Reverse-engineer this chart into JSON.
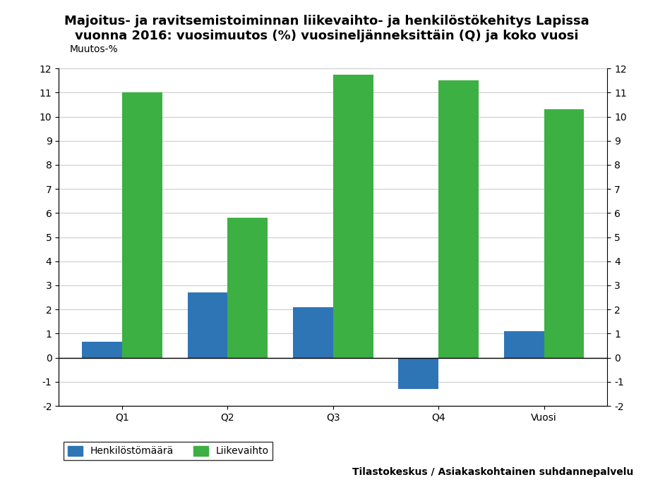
{
  "title_line1": "Majoitus- ja ravitsemistoiminnan liikevaihto- ja henkilöstökehitys Lapissa",
  "title_line2": "vuonna 2016: vuosimuutos (%) vuosineljänneksittäin (Q) ja koko vuosi",
  "ylabel_left": "Muutos-%",
  "categories": [
    "Q1",
    "Q2",
    "Q3",
    "Q4",
    "Vuosi"
  ],
  "henkilosto": [
    0.65,
    2.7,
    2.1,
    -1.3,
    1.1
  ],
  "liikevaihto": [
    11.0,
    5.8,
    11.75,
    11.5,
    10.3
  ],
  "color_henkilosto": "#2e75b6",
  "color_liikevaihto": "#3cb043",
  "ylim": [
    -2,
    12
  ],
  "yticks": [
    -2,
    -1,
    0,
    1,
    2,
    3,
    4,
    5,
    6,
    7,
    8,
    9,
    10,
    11,
    12
  ],
  "legend_henkilosto": "Henkilöstömäärä",
  "legend_liikevaihto": "Liikevaihto",
  "source": "Tilastokeskus / Asiakaskohtainen suhdannepalvelu",
  "title_fontsize": 13,
  "axis_label_fontsize": 10,
  "tick_fontsize": 10,
  "legend_fontsize": 10,
  "source_fontsize": 10,
  "bar_width": 0.38,
  "background_color": "#ffffff"
}
